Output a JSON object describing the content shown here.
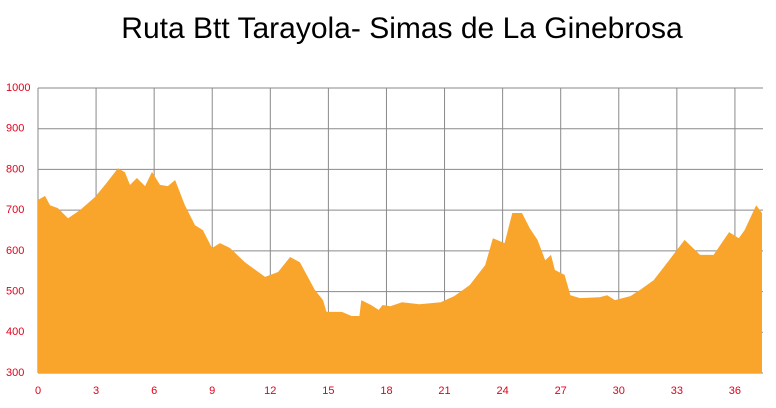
{
  "chart_data": {
    "type": "area",
    "title": "Ruta Btt Tarayola- Simas de La Ginebrosa",
    "x": [
      0,
      0.36,
      0.62,
      1.03,
      1.55,
      2.17,
      2.94,
      3.46,
      4.13,
      4.49,
      4.75,
      5.11,
      5.53,
      5.89,
      6.3,
      6.71,
      7.08,
      7.59,
      8.11,
      8.52,
      8.99,
      9.4,
      9.92,
      10.69,
      11.73,
      12.4,
      13.02,
      13.53,
      14.3,
      14.72,
      14.9,
      15.7,
      16.2,
      16.6,
      16.7,
      17.2,
      17.6,
      17.8,
      18.2,
      18.8,
      19.7,
      20.8,
      21.5,
      22.3,
      23.1,
      23.5,
      24.1,
      24.5,
      25.0,
      25.4,
      25.8,
      26.2,
      26.5,
      26.7,
      27.2,
      27.5,
      28.0,
      29.0,
      29.4,
      29.8,
      30.6,
      31.1,
      31.8,
      32.6,
      33.4,
      34.2,
      34.9,
      35.7,
      36.2,
      36.5,
      37.1,
      37.4
    ],
    "values": [
      725,
      735,
      712,
      705,
      680,
      700,
      732,
      762,
      803,
      793,
      762,
      779,
      759,
      794,
      762,
      759,
      774,
      712,
      663,
      651,
      607,
      619,
      607,
      572,
      536,
      548,
      585,
      572,
      504,
      479,
      450,
      450,
      440,
      440,
      479,
      467,
      455,
      467,
      464,
      474,
      469,
      474,
      489,
      516,
      565,
      631,
      619,
      693,
      693,
      656,
      627,
      577,
      590,
      553,
      541,
      491,
      484,
      486,
      491,
      479,
      489,
      504,
      528,
      577,
      627,
      590,
      590,
      646,
      631,
      651,
      712,
      693
    ],
    "color": "#f9a52b",
    "xlim": [
      0,
      37.45
    ],
    "xticks": [
      0,
      3,
      6,
      9,
      12,
      15,
      18,
      21,
      24,
      27,
      30,
      33,
      36
    ],
    "ylim": [
      300,
      1000
    ],
    "yticks": [
      300,
      400,
      500,
      600,
      700,
      800,
      900,
      1000
    ],
    "grid": true
  }
}
